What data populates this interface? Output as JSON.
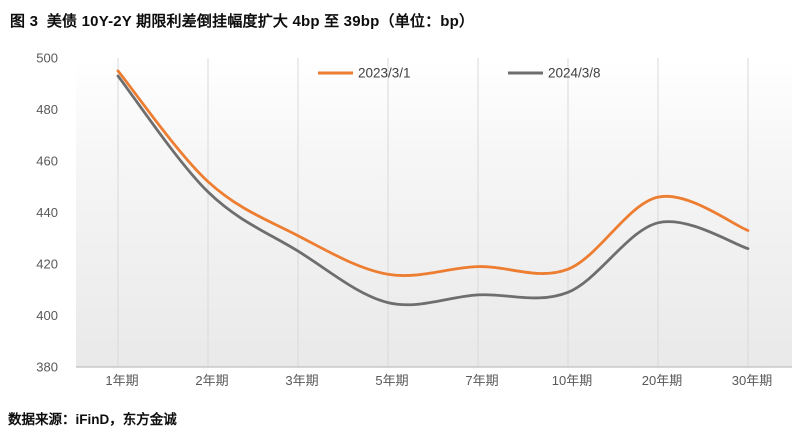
{
  "figure": {
    "title": "图 3  美债 10Y-2Y 期限利差倒挂幅度扩大 4bp 至 39bp（单位：bp）",
    "source": "数据来源：iFinD，东方金诚"
  },
  "colors": {
    "series1": "#ED7D31",
    "series2": "#6E6E6E",
    "gridline": "#D9D9D9",
    "axis_line": "#BFBFBF",
    "tick_text": "#595959",
    "legend_text": "#404040",
    "plot_bg_top": "#FFFFFF",
    "plot_bg_mid": "#F6F6F6",
    "plot_bg_bottom": "#E9E9E9"
  },
  "chart_data": {
    "type": "line",
    "title": "美债 10Y-2Y 期限利差倒挂幅度扩大 4bp 至 39bp",
    "unit": "bp",
    "categories": [
      "1年期",
      "2年期",
      "3年期",
      "5年期",
      "7年期",
      "10年期",
      "20年期",
      "30年期"
    ],
    "series": [
      {
        "name": "2023/3/1",
        "color": "#ED7D31",
        "values": [
          495,
          452,
          431,
          416,
          419,
          418,
          446,
          433
        ]
      },
      {
        "name": "2024/3/8",
        "color": "#6E6E6E",
        "values": [
          493,
          448,
          425,
          405,
          408,
          409,
          436,
          426
        ]
      }
    ],
    "ylim": [
      380,
      500
    ],
    "yticks": [
      380,
      400,
      420,
      440,
      460,
      480,
      500
    ],
    "grid": "vertical",
    "legend_position": "top",
    "xlabel": "",
    "ylabel": ""
  }
}
